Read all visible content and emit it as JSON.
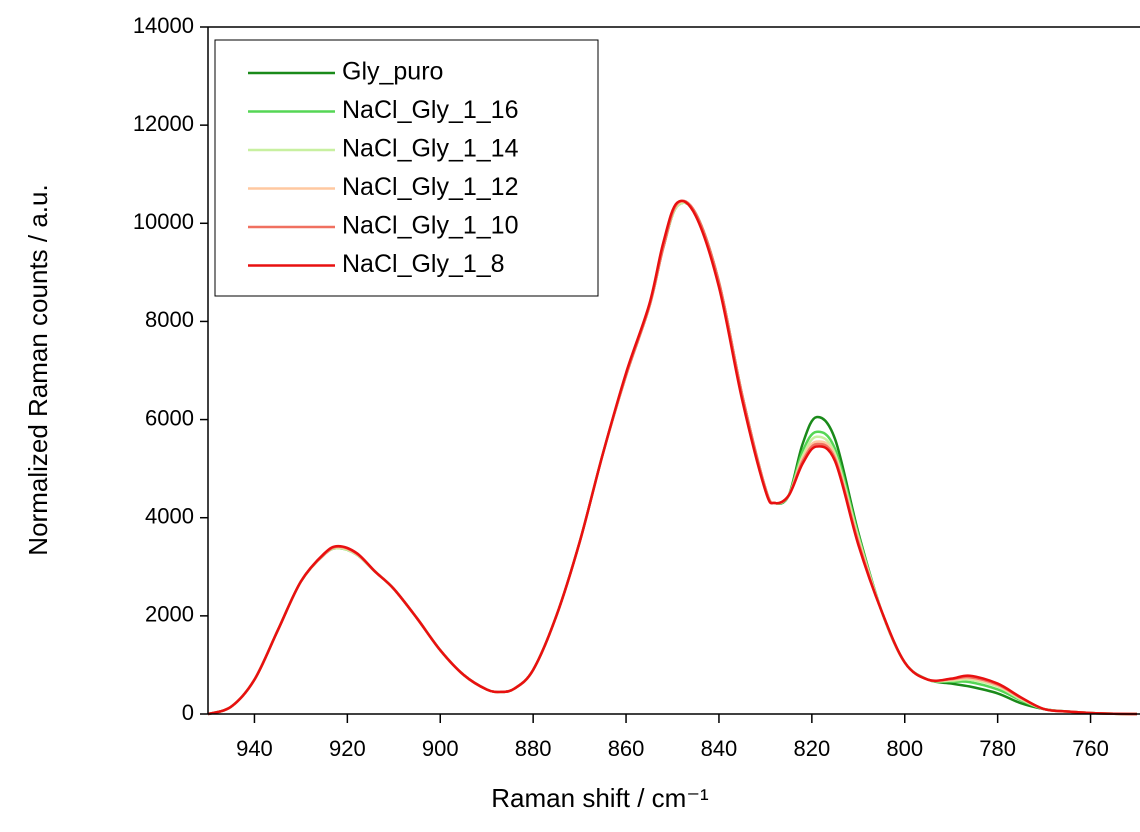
{
  "chart_data": {
    "type": "line",
    "x_label": "Raman shift / cm⁻¹",
    "y_label": "Normalized Raman counts / a.u.",
    "x": [
      950,
      945,
      940,
      935,
      930,
      925,
      922,
      918,
      914,
      910,
      905,
      900,
      895,
      890,
      887,
      884,
      880,
      875,
      870,
      865,
      860,
      855,
      852,
      849,
      845,
      840,
      835,
      830,
      828,
      825,
      822,
      819,
      815,
      810,
      805,
      800,
      795,
      790,
      786,
      780,
      775,
      770,
      765,
      760,
      755,
      750
    ],
    "series": [
      {
        "name": "Gly_puro",
        "color": "#1a8a1a",
        "values": [
          0,
          150,
          700,
          1700,
          2700,
          3250,
          3380,
          3250,
          2900,
          2550,
          1950,
          1300,
          800,
          500,
          450,
          520,
          900,
          2000,
          3500,
          5300,
          6900,
          8300,
          9500,
          10350,
          10200,
          8800,
          6500,
          4600,
          4300,
          4450,
          5500,
          6050,
          5600,
          3700,
          2100,
          1050,
          700,
          620,
          560,
          420,
          220,
          100,
          50,
          20,
          5,
          0
        ]
      },
      {
        "name": "NaCl_Gly_1_16",
        "color": "#55d655",
        "values": [
          0,
          150,
          700,
          1700,
          2700,
          3250,
          3380,
          3250,
          2900,
          2550,
          1950,
          1300,
          800,
          500,
          450,
          520,
          900,
          2000,
          3500,
          5300,
          6900,
          8300,
          9500,
          10350,
          10200,
          8800,
          6500,
          4600,
          4300,
          4450,
          5350,
          5750,
          5400,
          3650,
          2100,
          1050,
          700,
          660,
          650,
          500,
          280,
          100,
          50,
          20,
          5,
          0
        ]
      },
      {
        "name": "NaCl_Gly_1_14",
        "color": "#c8f0a0",
        "values": [
          0,
          150,
          700,
          1700,
          2700,
          3250,
          3380,
          3250,
          2900,
          2550,
          1950,
          1300,
          800,
          500,
          450,
          520,
          900,
          2000,
          3500,
          5300,
          6900,
          8300,
          9500,
          10350,
          10200,
          8800,
          6500,
          4600,
          4300,
          4450,
          5250,
          5650,
          5300,
          3600,
          2100,
          1050,
          700,
          680,
          700,
          560,
          300,
          100,
          50,
          20,
          5,
          0
        ]
      },
      {
        "name": "NaCl_Gly_1_12",
        "color": "#ffc8a0",
        "values": [
          0,
          150,
          700,
          1700,
          2700,
          3250,
          3400,
          3260,
          2900,
          2550,
          1950,
          1300,
          800,
          500,
          450,
          520,
          900,
          2000,
          3500,
          5300,
          6900,
          8300,
          9500,
          10380,
          10200,
          8800,
          6500,
          4600,
          4300,
          4450,
          5200,
          5550,
          5250,
          3550,
          2100,
          1050,
          700,
          700,
          730,
          580,
          320,
          100,
          50,
          20,
          5,
          0
        ]
      },
      {
        "name": "NaCl_Gly_1_10",
        "color": "#f07060",
        "values": [
          0,
          150,
          700,
          1700,
          2700,
          3250,
          3410,
          3270,
          2900,
          2550,
          1950,
          1300,
          800,
          500,
          450,
          520,
          900,
          2000,
          3500,
          5300,
          6900,
          8300,
          9500,
          10400,
          10200,
          8800,
          6500,
          4600,
          4300,
          4450,
          5150,
          5500,
          5200,
          3500,
          2100,
          1050,
          700,
          710,
          750,
          600,
          330,
          100,
          50,
          20,
          5,
          0
        ]
      },
      {
        "name": "NaCl_Gly_1_8",
        "color": "#e81010",
        "values": [
          0,
          150,
          700,
          1700,
          2700,
          3270,
          3420,
          3280,
          2900,
          2550,
          1950,
          1300,
          800,
          500,
          450,
          520,
          900,
          2000,
          3500,
          5300,
          6950,
          8350,
          9600,
          10420,
          10150,
          8700,
          6400,
          4550,
          4300,
          4450,
          5100,
          5450,
          5150,
          3450,
          2100,
          1050,
          700,
          720,
          780,
          620,
          340,
          100,
          50,
          20,
          5,
          0
        ]
      }
    ],
    "xlim": [
      950,
      750
    ],
    "xticks": [
      940,
      920,
      900,
      880,
      860,
      840,
      820,
      800,
      780,
      760
    ],
    "ylim": [
      0,
      14000
    ],
    "yticks": [
      0,
      2000,
      4000,
      6000,
      8000,
      10000,
      12000,
      14000
    ],
    "legend": "top-left"
  }
}
